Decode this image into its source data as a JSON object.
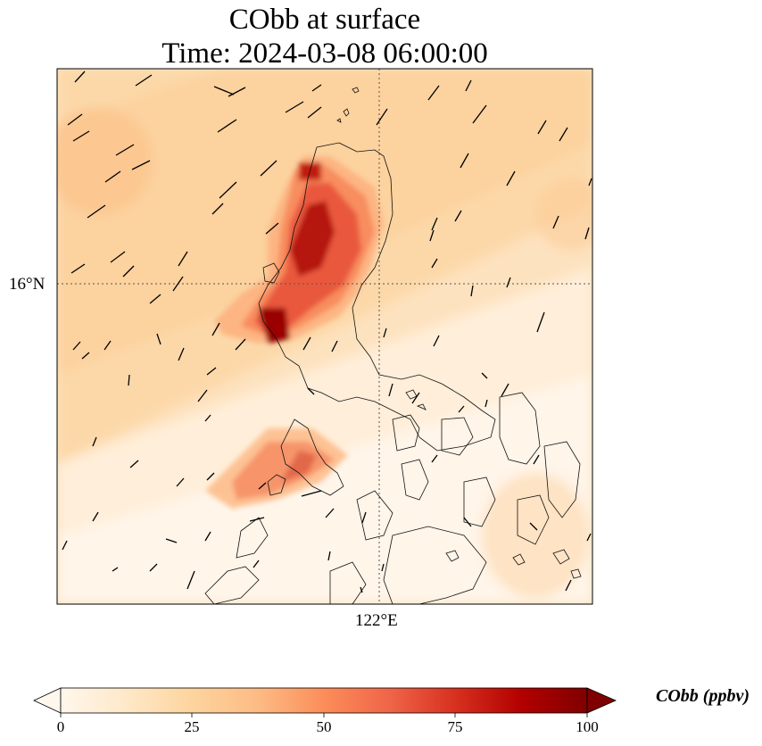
{
  "title_line1": "CObb at surface",
  "title_line2": "Time: 2024-03-08 06:00:00",
  "lat_tick": "16°N",
  "lon_tick": "122°E",
  "colorbar": {
    "label": "CObb (ppbv)",
    "min": 0,
    "max": 100,
    "ticks": [
      "0",
      "25",
      "50",
      "75",
      "100"
    ],
    "extend": "both",
    "colormap": "OrRd",
    "colors": [
      "#fff7ec",
      "#fee8c8",
      "#fdd49e",
      "#fdbb84",
      "#fc8d59",
      "#ef6548",
      "#d7301f",
      "#b30000",
      "#7f0000"
    ]
  },
  "map": {
    "variable": "CObb",
    "overlay": "wind vectors",
    "gridlines": "dotted"
  }
}
